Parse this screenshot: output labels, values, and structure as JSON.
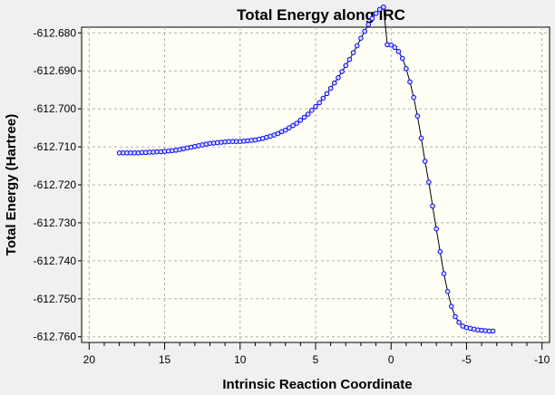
{
  "chart_data": {
    "type": "line",
    "title": "Total Energy along IRC",
    "xlabel": "Intrinsic Reaction Coordinate",
    "ylabel": "Total Energy (Hartree)",
    "xlim": [
      20.5,
      -10.5
    ],
    "ylim": [
      -612.7615,
      -612.6785
    ],
    "xticks": [
      20,
      15,
      10,
      5,
      0,
      -5,
      -10
    ],
    "xtick_labels": [
      "20",
      "15",
      "10",
      "5",
      "0",
      "-5",
      "-10"
    ],
    "yticks": [
      -612.68,
      -612.69,
      -612.7,
      -612.71,
      -612.72,
      -612.73,
      -612.74,
      -612.75,
      -612.76
    ],
    "ytick_labels": [
      "-612.680",
      "-612.690",
      "-612.700",
      "-612.710",
      "-612.720",
      "-612.730",
      "-612.740",
      "-612.750",
      "-612.760"
    ],
    "grid": true,
    "colors": {
      "background": "#f0f0f0",
      "plot_bg": "#fffff5",
      "grid": "#b0b0b0",
      "line": "#000000",
      "marker_edge": "#0000ff",
      "marker_fill": "#d8d8ff"
    },
    "series": [
      {
        "name": "Total Energy",
        "x": [
          18.0,
          17.75,
          17.5,
          17.25,
          17.0,
          16.75,
          16.5,
          16.25,
          16.0,
          15.75,
          15.5,
          15.25,
          15.0,
          14.75,
          14.5,
          14.25,
          14.0,
          13.75,
          13.5,
          13.25,
          13.0,
          12.75,
          12.5,
          12.25,
          12.0,
          11.75,
          11.5,
          11.25,
          11.0,
          10.75,
          10.5,
          10.25,
          10.0,
          9.75,
          9.5,
          9.25,
          9.0,
          8.75,
          8.5,
          8.25,
          8.0,
          7.75,
          7.5,
          7.25,
          7.0,
          6.75,
          6.5,
          6.25,
          6.0,
          5.75,
          5.5,
          5.25,
          5.0,
          4.75,
          4.5,
          4.25,
          4.0,
          3.75,
          3.5,
          3.25,
          3.0,
          2.75,
          2.5,
          2.25,
          2.0,
          1.75,
          1.5,
          1.25,
          1.0,
          0.75,
          0.5,
          0.25,
          0.0,
          -0.25,
          -0.5,
          -0.75,
          -1.0,
          -1.25,
          -1.5,
          -1.75,
          -2.0,
          -2.25,
          -2.5,
          -2.75,
          -3.0,
          -3.25,
          -3.5,
          -3.75,
          -4.0,
          -4.25,
          -4.5,
          -4.75,
          -5.0,
          -5.25,
          -5.5,
          -5.75,
          -6.0,
          -6.25,
          -6.5,
          -6.75
        ],
        "y": [
          -612.7116,
          -612.7116,
          -612.7116,
          -612.7116,
          -612.7116,
          -612.7116,
          -612.7115,
          -612.7115,
          -612.7114,
          -612.7114,
          -612.7113,
          -612.7113,
          -612.7112,
          -612.7111,
          -612.711,
          -612.7109,
          -612.7107,
          -612.7105,
          -612.7103,
          -612.7101,
          -612.7099,
          -612.7097,
          -612.7095,
          -612.7093,
          -612.7091,
          -612.709,
          -612.7089,
          -612.7088,
          -612.7087,
          -612.7086,
          -612.7086,
          -612.7086,
          -612.7086,
          -612.7085,
          -612.7084,
          -612.7083,
          -612.7082,
          -612.708,
          -612.7078,
          -612.7075,
          -612.7072,
          -612.7069,
          -612.7065,
          -612.706,
          -612.7056,
          -612.705,
          -612.7044,
          -612.7038,
          -612.703,
          -612.7022,
          -612.7014,
          -612.7004,
          -612.6994,
          -612.6984,
          -612.6972,
          -612.696,
          -612.6946,
          -612.6932,
          -612.6918,
          -612.6902,
          -612.6886,
          -612.687,
          -612.6852,
          -612.6834,
          -612.6814,
          -612.6796,
          -612.6778,
          -612.6762,
          -612.6749,
          -612.6738,
          -612.6732,
          -612.6831,
          -612.6832,
          -612.6838,
          -612.6849,
          -612.6867,
          -612.6894,
          -612.6929,
          -612.697,
          -612.7019,
          -612.7077,
          -612.7138,
          -612.7193,
          -612.7256,
          -612.7316,
          -612.7376,
          -612.7434,
          -612.7481,
          -612.752,
          -612.7547,
          -612.7562,
          -612.7572,
          -612.7576,
          -612.7578,
          -612.758,
          -612.7582,
          -612.7583,
          -612.7584,
          -612.7585,
          -612.7585
        ]
      }
    ]
  }
}
